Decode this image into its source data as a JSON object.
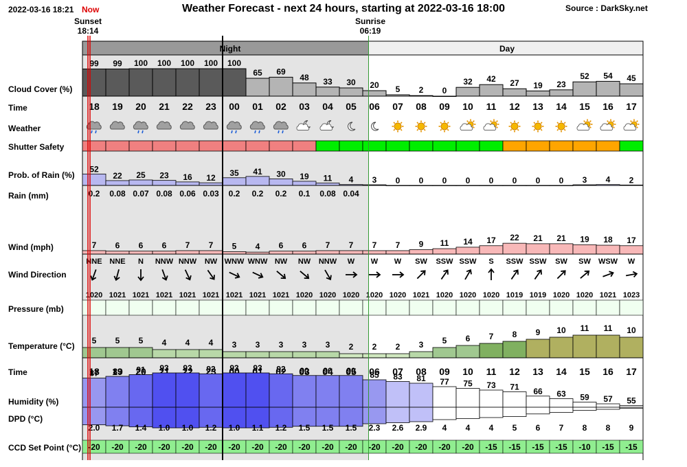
{
  "header": {
    "datetime": "2022-03-16 18:21",
    "now_label": "Now",
    "title": "Weather Forecast - next 24 hours, starting at 2022-03-16 18:00",
    "source": "Source : DarkSky.net"
  },
  "sun": {
    "sunset_label": "Sunset",
    "sunset_time": "18:14",
    "sunrise_label": "Sunrise",
    "sunrise_time": "06:19"
  },
  "bands": {
    "night_label": "Night",
    "day_label": "Day"
  },
  "colors": {
    "night_band": "#999999",
    "night_bg": "#e4e4e4",
    "day_band": "#f0f0f0",
    "cloud": "#5a5a5a",
    "shutter_unsafe": "#f08080",
    "shutter_safe": "#00ee00",
    "shutter_marginal": "#ffa500",
    "rain_bar": "#b8b8f0",
    "wind_bar": "#f8b8b8",
    "pressure_cell": "#f0fff0",
    "ccd_cell": "#90ee90",
    "now_line": "#dd0000",
    "sunrise_line": "#339933"
  },
  "chart_data": {
    "type": "table",
    "hours": [
      "18",
      "19",
      "20",
      "21",
      "22",
      "23",
      "00",
      "01",
      "02",
      "03",
      "04",
      "05",
      "06",
      "07",
      "08",
      "09",
      "10",
      "11",
      "12",
      "13",
      "14",
      "15",
      "16",
      "17"
    ],
    "row_labels": {
      "cloud": "Cloud Cover (%)",
      "time": "Time",
      "weather": "Weather",
      "shutter": "Shutter Safety",
      "rain_prob": "Prob. of Rain (%)",
      "rain": "Rain (mm)",
      "wind": "Wind (mph)",
      "wind_dir": "Wind Direction",
      "pressure": "Pressure (mb)",
      "temperature": "Temperature (°C)",
      "time2": "Time",
      "humidity": "Humidity (%)",
      "dpd": "DPD (°C)",
      "ccd": "CCD Set Point (°C)"
    },
    "cloud_cover": [
      99,
      99,
      100,
      100,
      100,
      100,
      100,
      65,
      69,
      48,
      33,
      30,
      20,
      5,
      2,
      0,
      32,
      42,
      27,
      19,
      23,
      52,
      54,
      45
    ],
    "weather_icons": [
      "rain-cloud-icon",
      "cloud-icon",
      "rain-cloud-icon",
      "cloud-icon",
      "cloud-icon",
      "cloud-icon",
      "rain-cloud-icon",
      "rain-cloud-icon",
      "rain-cloud-icon",
      "partly-cloudy-night-icon",
      "partly-cloudy-night-icon",
      "moon-icon",
      "moon-icon",
      "sun-icon",
      "sun-icon",
      "sun-icon",
      "partly-cloudy-day-icon",
      "partly-cloudy-day-icon",
      "sun-icon",
      "sun-icon",
      "sun-icon",
      "partly-cloudy-day-icon",
      "partly-cloudy-day-icon",
      "partly-cloudy-day-icon"
    ],
    "shutter_safety": [
      "unsafe",
      "unsafe",
      "unsafe",
      "unsafe",
      "unsafe",
      "unsafe",
      "unsafe",
      "unsafe",
      "unsafe",
      "unsafe",
      "safe",
      "safe",
      "safe",
      "safe",
      "safe",
      "safe",
      "safe",
      "safe",
      "marginal",
      "marginal",
      "marginal",
      "marginal",
      "marginal",
      "safe"
    ],
    "rain_probability": [
      52,
      22,
      25,
      23,
      16,
      12,
      35,
      41,
      30,
      19,
      11,
      4,
      3,
      0,
      0,
      0,
      0,
      0,
      0,
      0,
      0,
      3,
      4,
      2
    ],
    "rain_mm": [
      "0.2",
      "0.08",
      "0.07",
      "0.08",
      "0.06",
      "0.03",
      "0.2",
      "0.2",
      "0.2",
      "0.1",
      "0.08",
      "0.04"
    ],
    "wind_mph": [
      7,
      6,
      6,
      6,
      7,
      7,
      5,
      4,
      6,
      6,
      7,
      7,
      7,
      7,
      9,
      11,
      14,
      17,
      22,
      21,
      21,
      19,
      18,
      17
    ],
    "wind_dir": [
      "NNE",
      "NNE",
      "N",
      "NNW",
      "NNW",
      "NW",
      "WNW",
      "WNW",
      "NW",
      "NW",
      "NNW",
      "W",
      "W",
      "W",
      "SW",
      "SSW",
      "SSW",
      "S",
      "SSW",
      "SSW",
      "SW",
      "SW",
      "WSW",
      "W"
    ],
    "wind_arrow_deg": [
      200,
      195,
      180,
      160,
      155,
      145,
      115,
      115,
      130,
      130,
      150,
      90,
      90,
      90,
      45,
      35,
      30,
      0,
      35,
      35,
      45,
      50,
      70,
      80
    ],
    "pressure_mb": [
      1020,
      1021,
      1021,
      1021,
      1021,
      1021,
      1021,
      1021,
      1021,
      1020,
      1020,
      1020,
      1020,
      1020,
      1021,
      1020,
      1020,
      1020,
      1019,
      1019,
      1020,
      1020,
      1021,
      1023
    ],
    "temperature_c": [
      5,
      5,
      5,
      4,
      4,
      4,
      3,
      3,
      3,
      3,
      3,
      2,
      2,
      2,
      3,
      5,
      6,
      7,
      8,
      9,
      10,
      11,
      11,
      10
    ],
    "humidity_pct": [
      87,
      89,
      91,
      93,
      93,
      92,
      93,
      93,
      92,
      90,
      90,
      90,
      85,
      83,
      81,
      77,
      75,
      73,
      71,
      66,
      63,
      59,
      57,
      55
    ],
    "dpd_c": [
      "2.0",
      "1.7",
      "1.4",
      "1.0",
      "1.0",
      "1.2",
      "1.0",
      "1.1",
      "1.2",
      "1.5",
      "1.5",
      "1.5",
      "2.3",
      "2.6",
      "2.9",
      "4",
      "4",
      "4",
      "5",
      "6",
      "7",
      "8",
      "8",
      "9"
    ],
    "ccd_set_point_c": [
      -20,
      -20,
      -20,
      -20,
      -20,
      -20,
      -20,
      -20,
      -20,
      -20,
      -20,
      -20,
      -20,
      -20,
      -20,
      -20,
      -20,
      -15,
      -15,
      -15,
      -15,
      -10,
      -15,
      -15
    ]
  }
}
